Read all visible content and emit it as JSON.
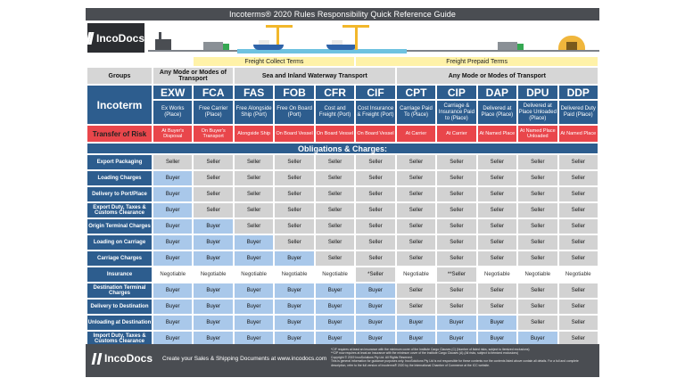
{
  "title": "Incoterms® 2020 Rules Responsibility Quick Reference Guide",
  "brand": {
    "name": "IncoDocs"
  },
  "terms_header": {
    "collect": "Freight Collect Terms",
    "prepaid": "Freight Prepaid Terms"
  },
  "groups": {
    "label": "Groups",
    "any_mode_1": "Any Mode or Modes of Transport",
    "sea": "Sea and Inland Waterway Transport",
    "any_mode_2": "Any Mode or Modes of Transport"
  },
  "incoterm_label": "Incoterm",
  "risk_label": "Transfer of Risk",
  "obligations_title": "Obligations & Charges:",
  "incoterms": [
    {
      "code": "EXW",
      "desc": "Ex Works (Place)",
      "risk": "At Buyer's Disposal"
    },
    {
      "code": "FCA",
      "desc": "Free Carrier (Place)",
      "risk": "On Buyer's Transport"
    },
    {
      "code": "FAS",
      "desc": "Free Alongside Ship (Port)",
      "risk": "Alongside Ship"
    },
    {
      "code": "FOB",
      "desc": "Free On Board (Port)",
      "risk": "On Board Vessel"
    },
    {
      "code": "CFR",
      "desc": "Cost and Freight (Port)",
      "risk": "On Board Vessel"
    },
    {
      "code": "CIF",
      "desc": "Cost Insurance & Freight (Port)",
      "risk": "On Board Vessel"
    },
    {
      "code": "CPT",
      "desc": "Carriage Paid To (Place)",
      "risk": "At Carrier"
    },
    {
      "code": "CIP",
      "desc": "Carriage & Insurance Paid to (Place)",
      "risk": "At Carrier"
    },
    {
      "code": "DAP",
      "desc": "Delivered at Place (Place)",
      "risk": "At Named Place"
    },
    {
      "code": "DPU",
      "desc": "Delivered at Place Unloaded (Place)",
      "risk": "At Named Place Unloaded"
    },
    {
      "code": "DDP",
      "desc": "Delivered Duty Paid (Place)",
      "risk": "At Named Place"
    }
  ],
  "rows": [
    {
      "label": "Export Packaging",
      "values": [
        "Seller",
        "Seller",
        "Seller",
        "Seller",
        "Seller",
        "Seller",
        "Seller",
        "Seller",
        "Seller",
        "Seller",
        "Seller"
      ]
    },
    {
      "label": "Loading Charges",
      "values": [
        "Buyer",
        "Seller",
        "Seller",
        "Seller",
        "Seller",
        "Seller",
        "Seller",
        "Seller",
        "Seller",
        "Seller",
        "Seller"
      ]
    },
    {
      "label": "Delivery to Port/Place",
      "values": [
        "Buyer",
        "Seller",
        "Seller",
        "Seller",
        "Seller",
        "Seller",
        "Seller",
        "Seller",
        "Seller",
        "Seller",
        "Seller"
      ]
    },
    {
      "label": "Export Duty, Taxes & Customs Clearance",
      "values": [
        "Buyer",
        "Seller",
        "Seller",
        "Seller",
        "Seller",
        "Seller",
        "Seller",
        "Seller",
        "Seller",
        "Seller",
        "Seller"
      ]
    },
    {
      "label": "Origin Terminal Charges",
      "values": [
        "Buyer",
        "Buyer",
        "Seller",
        "Seller",
        "Seller",
        "Seller",
        "Seller",
        "Seller",
        "Seller",
        "Seller",
        "Seller"
      ]
    },
    {
      "label": "Loading on Carriage",
      "values": [
        "Buyer",
        "Buyer",
        "Buyer",
        "Seller",
        "Seller",
        "Seller",
        "Seller",
        "Seller",
        "Seller",
        "Seller",
        "Seller"
      ]
    },
    {
      "label": "Carriage Charges",
      "values": [
        "Buyer",
        "Buyer",
        "Buyer",
        "Buyer",
        "Seller",
        "Seller",
        "Seller",
        "Seller",
        "Seller",
        "Seller",
        "Seller"
      ]
    },
    {
      "label": "Insurance",
      "values": [
        "Negotiable",
        "Negotiable",
        "Negotiable",
        "Negotiable",
        "Negotiable",
        "*Seller",
        "Negotiable",
        "**Seller",
        "Negotiable",
        "Negotiable",
        "Negotiable"
      ]
    },
    {
      "label": "Destination Terminal Charges",
      "values": [
        "Buyer",
        "Buyer",
        "Buyer",
        "Buyer",
        "Buyer",
        "Buyer",
        "Seller",
        "Seller",
        "Seller",
        "Seller",
        "Seller"
      ]
    },
    {
      "label": "Delivery to Destination",
      "values": [
        "Buyer",
        "Buyer",
        "Buyer",
        "Buyer",
        "Buyer",
        "Buyer",
        "Seller",
        "Seller",
        "Seller",
        "Seller",
        "Seller"
      ]
    },
    {
      "label": "Unloading at Destination",
      "values": [
        "Buyer",
        "Buyer",
        "Buyer",
        "Buyer",
        "Buyer",
        "Buyer",
        "Buyer",
        "Buyer",
        "Buyer",
        "Seller",
        "Seller"
      ]
    },
    {
      "label": "Import Duty, Taxes & Customs Clearance",
      "values": [
        "Buyer",
        "Buyer",
        "Buyer",
        "Buyer",
        "Buyer",
        "Buyer",
        "Buyer",
        "Buyer",
        "Buyer",
        "Buyer",
        "Seller"
      ]
    }
  ],
  "footer": {
    "tagline": "Create your Sales & Shipping Documents at www.incodocs.com",
    "notes": [
      "*CIF requires at least an insurance with the minimum cover of the Institute Cargo Clauses (C) (Number of listed risks, subject to itemized exclusions)",
      "**CIP now requires at least an insurance with the minimum cover of the Institute Cargo Clauses (A) (All risks, subject to itemized exclusions)",
      "Copyright © 2019 IncoSolutions Pty Ltd. All Rights Reserved.",
      "This is general information for guidance purposes only. IncoSolutions Pty Ltd is not responsible for these contents nor the contents listed above contain all details. For a full and complete description, refer to the full version of Incoterms® 2020 by the International Chamber of Commerce at the ICC website."
    ]
  },
  "colors": {
    "blue": "#2d5d8e",
    "red": "#e9464b",
    "seller": "#d2d2d2",
    "buyer": "#a9c8ea",
    "yellow": "#fff2a8"
  }
}
